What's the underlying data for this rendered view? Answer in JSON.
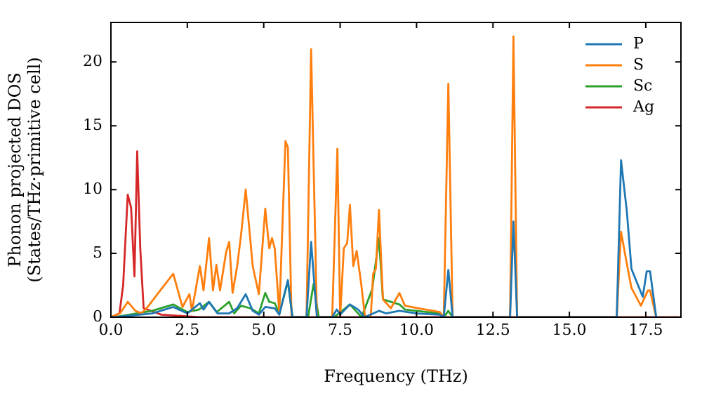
{
  "chart_data": {
    "type": "line",
    "xlabel": "Frequency (THz)",
    "ylabel": "Phonon projected DOS\n(States/THz·primitive cell)",
    "xlim": [
      0,
      18.65
    ],
    "ylim": [
      0,
      23.1
    ],
    "xticks": [
      {
        "value": 0,
        "label": "0.0"
      },
      {
        "value": 2.5,
        "label": "2.5"
      },
      {
        "value": 5,
        "label": "5.0"
      },
      {
        "value": 7.5,
        "label": "7.5"
      },
      {
        "value": 10,
        "label": "10.0"
      },
      {
        "value": 12.5,
        "label": "12.5"
      },
      {
        "value": 15,
        "label": "15.0"
      },
      {
        "value": 17.5,
        "label": "17.5"
      }
    ],
    "yticks": [
      0,
      5,
      10,
      15,
      20
    ],
    "grid": false,
    "legend": "top right",
    "marker": "none",
    "line_style": "solid",
    "series": [
      {
        "name": "P",
        "color": "#1f77b4",
        "x": [
          0,
          0.12,
          1.35,
          2.04,
          2.5,
          2.91,
          3.03,
          3.21,
          3.49,
          3.87,
          4.13,
          4.41,
          4.64,
          4.84,
          5.05,
          5.36,
          5.51,
          5.79,
          5.94,
          6.4,
          6.55,
          6.74,
          7.24,
          7.39,
          7.5,
          7.82,
          8.09,
          8.3,
          8.77,
          9.0,
          9.44,
          10.0,
          10.76,
          10.89,
          11.04,
          11.18,
          13.06,
          13.17,
          13.29,
          16.55,
          16.69,
          16.88,
          17.03,
          17.4,
          17.53,
          17.64,
          17.84
        ],
        "values": [
          0,
          0,
          0.3,
          0.8,
          0.3,
          1.1,
          0.6,
          1.2,
          0.3,
          0.3,
          0.7,
          1.8,
          0.5,
          0.2,
          0.8,
          0.7,
          0.2,
          2.9,
          0,
          0,
          5.9,
          0,
          0,
          0.6,
          0.2,
          1.0,
          0.6,
          0,
          0.5,
          0.3,
          0.5,
          0.3,
          0.2,
          0,
          3.7,
          0,
          0,
          7.5,
          0,
          0,
          12.3,
          8.3,
          3.8,
          1.6,
          3.6,
          3.6,
          0
        ]
      },
      {
        "name": "S",
        "color": "#ff7f0e",
        "x": [
          0,
          0.3,
          0.55,
          0.8,
          1.0,
          1.2,
          1.81,
          2.04,
          2.34,
          2.57,
          2.65,
          2.91,
          3.03,
          3.21,
          3.34,
          3.45,
          3.57,
          3.77,
          3.87,
          3.98,
          4.13,
          4.26,
          4.41,
          4.64,
          4.84,
          5.05,
          5.18,
          5.27,
          5.36,
          5.51,
          5.71,
          5.79,
          5.91,
          6.4,
          6.55,
          6.74,
          7.24,
          7.41,
          7.5,
          7.62,
          7.73,
          7.82,
          7.93,
          8.04,
          8.19,
          8.31,
          8.5,
          8.58,
          8.67,
          8.77,
          8.9,
          9.16,
          9.44,
          9.62,
          10.07,
          10.76,
          10.89,
          11.04,
          11.18,
          13.06,
          13.17,
          13.29,
          16.55,
          16.69,
          16.84,
          17.03,
          17.34,
          17.57,
          17.64,
          17.84
        ],
        "values": [
          0,
          0.3,
          1.2,
          0.5,
          0.3,
          0.8,
          2.7,
          3.4,
          0.8,
          1.8,
          0.5,
          4.0,
          2.1,
          6.2,
          2.1,
          4.1,
          2.1,
          5.1,
          5.9,
          1.9,
          4.0,
          6.5,
          10.0,
          4.0,
          1.8,
          8.5,
          5.4,
          6.2,
          5.4,
          0.3,
          13.8,
          13.3,
          0,
          0,
          21.0,
          0,
          0,
          13.2,
          0,
          5.4,
          5.8,
          8.8,
          4.0,
          5.2,
          2.6,
          0.1,
          0,
          3.4,
          3.8,
          8.4,
          1.4,
          0.7,
          1.9,
          0.9,
          0.7,
          0.4,
          0,
          18.3,
          0,
          0,
          22.0,
          0,
          0,
          6.7,
          4.7,
          2.3,
          0.9,
          2.1,
          2.1,
          0
        ]
      },
      {
        "name": "Sc",
        "color": "#2ca02c",
        "x": [
          0,
          0.12,
          1.35,
          2.04,
          2.5,
          2.88,
          3.21,
          3.46,
          3.87,
          4.03,
          4.26,
          4.56,
          4.84,
          5.05,
          5.18,
          5.36,
          5.51,
          5.79,
          5.94,
          6.45,
          6.63,
          6.8,
          7.3,
          7.82,
          8.2,
          8.55,
          8.77,
          8.9,
          9.44,
          9.62,
          10.76,
          10.89,
          11.04,
          11.18
        ],
        "values": [
          0,
          0,
          0.5,
          1.0,
          0.4,
          0.6,
          1.2,
          0.4,
          1.2,
          0.3,
          0.9,
          0.7,
          0.3,
          1.9,
          1.2,
          1.1,
          0.3,
          2.8,
          0,
          0,
          2.6,
          0,
          0,
          1.0,
          0,
          2.2,
          6.2,
          1.4,
          1.0,
          0.6,
          0.3,
          0,
          0.5,
          0
        ]
      },
      {
        "name": "Ag",
        "color": "#d62728",
        "x": [
          0,
          0.28,
          0.4,
          0.55,
          0.66,
          0.77,
          0.86,
          0.96,
          1.07,
          1.65,
          2.88,
          18.6
        ],
        "values": [
          0,
          0.3,
          2.5,
          9.6,
          8.6,
          3.2,
          13.0,
          5.4,
          0.7,
          0.2,
          0,
          0
        ]
      }
    ]
  }
}
